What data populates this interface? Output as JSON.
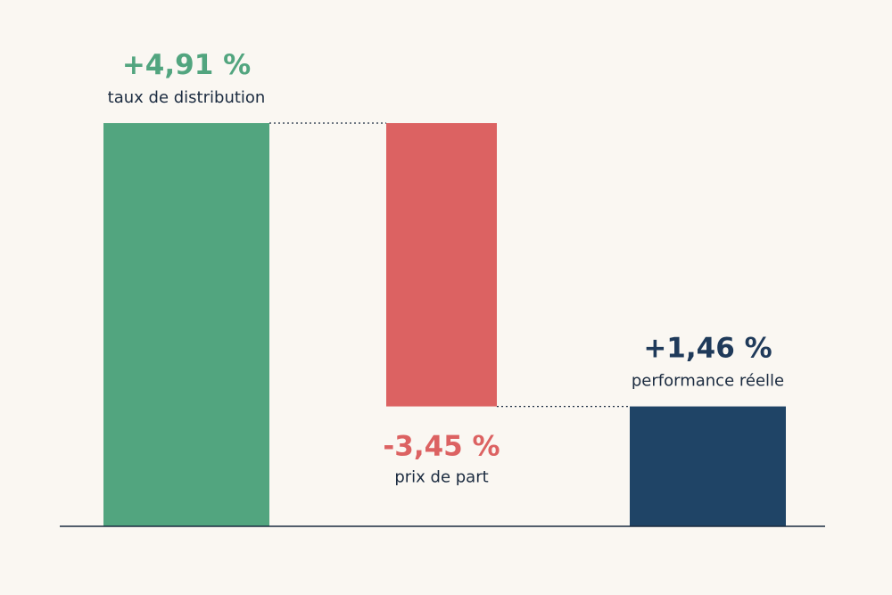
{
  "chart_data": {
    "type": "bar",
    "subtype": "waterfall",
    "categories": [
      "taux de distribution",
      "prix de part",
      "performance réelle"
    ],
    "values": [
      4.91,
      -3.45,
      1.46
    ],
    "value_labels": [
      "+4,91 %",
      "-3,45 %",
      "+1,46 %"
    ],
    "bar_kinds": [
      "increase",
      "decrease",
      "total"
    ],
    "ylim": [
      0,
      5.6
    ],
    "grid": false,
    "legend": "none",
    "connectors": true
  },
  "colors": {
    "background": "#faf7f2",
    "increase": "#52a57f",
    "decrease": "#dc6262",
    "total": "#1f4466",
    "baseline": "#1b2b40",
    "connector": "#1b2b40",
    "category_text": "#1b2b40",
    "total_value_text": "#1f3a5a"
  }
}
